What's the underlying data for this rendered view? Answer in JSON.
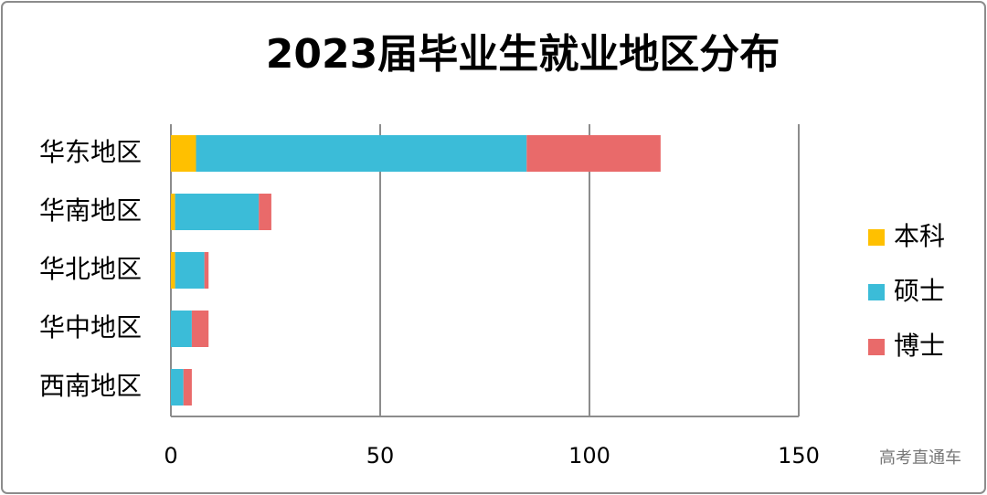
{
  "chart_data": {
    "type": "stacked-bar-horizontal",
    "title": "2023届毕业生就业地区分布",
    "categories": [
      "华东地区",
      "华南地区",
      "华北地区",
      "华中地区",
      "西南地区"
    ],
    "series": [
      {
        "name": "本科",
        "color": "#ffc000",
        "values": [
          6,
          1,
          1,
          0,
          0
        ]
      },
      {
        "name": "硕士",
        "color": "#3bbcd8",
        "values": [
          79,
          20,
          7,
          5,
          3
        ]
      },
      {
        "name": "博士",
        "color": "#e96a6a",
        "values": [
          32,
          3,
          1,
          4,
          2
        ]
      }
    ],
    "xlim": [
      0,
      150
    ],
    "xticks": [
      0,
      50,
      100,
      150
    ],
    "grid": true,
    "legend": "right",
    "watermark": "高考直通车"
  }
}
